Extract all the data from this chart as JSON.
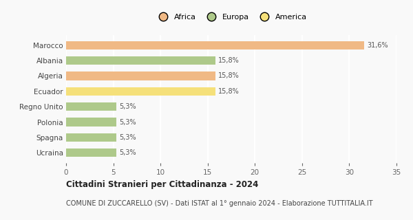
{
  "categories": [
    "Marocco",
    "Albania",
    "Algeria",
    "Ecuador",
    "Regno Unito",
    "Polonia",
    "Spagna",
    "Ucraina"
  ],
  "values": [
    31.6,
    15.8,
    15.8,
    15.8,
    5.3,
    5.3,
    5.3,
    5.3
  ],
  "labels": [
    "31,6%",
    "15,8%",
    "15,8%",
    "15,8%",
    "5,3%",
    "5,3%",
    "5,3%",
    "5,3%"
  ],
  "colors": [
    "#f0b985",
    "#aec98a",
    "#f0b985",
    "#f5e07a",
    "#aec98a",
    "#aec98a",
    "#aec98a",
    "#aec98a"
  ],
  "legend_labels": [
    "Africa",
    "Europa",
    "America"
  ],
  "legend_colors": [
    "#f0b985",
    "#aec98a",
    "#f5e07a"
  ],
  "xlim": [
    0,
    35
  ],
  "xticks": [
    0,
    5,
    10,
    15,
    20,
    25,
    30,
    35
  ],
  "title": "Cittadini Stranieri per Cittadinanza - 2024",
  "subtitle": "COMUNE DI ZUCCARELLO (SV) - Dati ISTAT al 1° gennaio 2024 - Elaborazione TUTTITALIA.IT",
  "title_fontsize": 8.5,
  "subtitle_fontsize": 7.0,
  "background_color": "#f9f9f9",
  "grid_color": "#ffffff",
  "bar_height": 0.55
}
